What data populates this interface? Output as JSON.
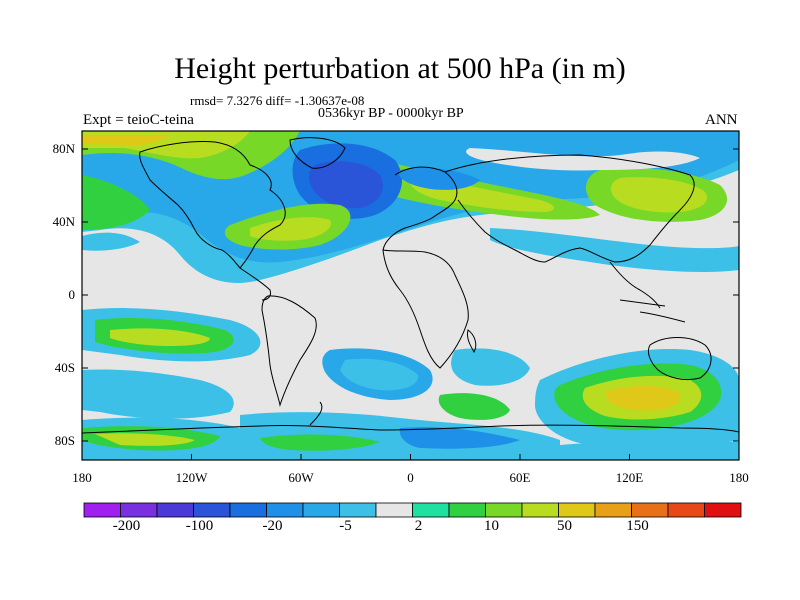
{
  "title": "Height perturbation at 500 hPa (in m)",
  "stats": "rmsd= 7.3276 diff= -1.30637e-08",
  "period": "0536kyr BP - 0000kyr BP",
  "experiment": "Expt = teioC-teina",
  "season": "ANN",
  "y_ticks": [
    "80N",
    "40N",
    "0",
    "40S",
    "80S"
  ],
  "x_ticks": [
    "180",
    "120W",
    "60W",
    "0",
    "60E",
    "120E",
    "180"
  ],
  "colorbar": {
    "labels": [
      "-200",
      "-100",
      "-20",
      "-5",
      "2",
      "10",
      "50",
      "150"
    ],
    "colors": [
      "#a020f0",
      "#7a2fe0",
      "#4b3ad8",
      "#2a55d8",
      "#1a6fe0",
      "#1e90e8",
      "#28a8e8",
      "#3cc0e8",
      "#e6e6e6",
      "#1ee0a0",
      "#30d040",
      "#78d828",
      "#b8dc20",
      "#e0c818",
      "#e8a018",
      "#e87018",
      "#e84818",
      "#e01010"
    ]
  },
  "colors": {
    "neutral": "#e6e6e6",
    "light_blue": "#3cc0e8",
    "blue": "#28a8e8",
    "mid_blue": "#1a6fe0",
    "dark_blue": "#2a55d8",
    "teal": "#1ee0a0",
    "green": "#30d040",
    "yellow_green": "#b8dc20",
    "yellow": "#e0c818"
  }
}
